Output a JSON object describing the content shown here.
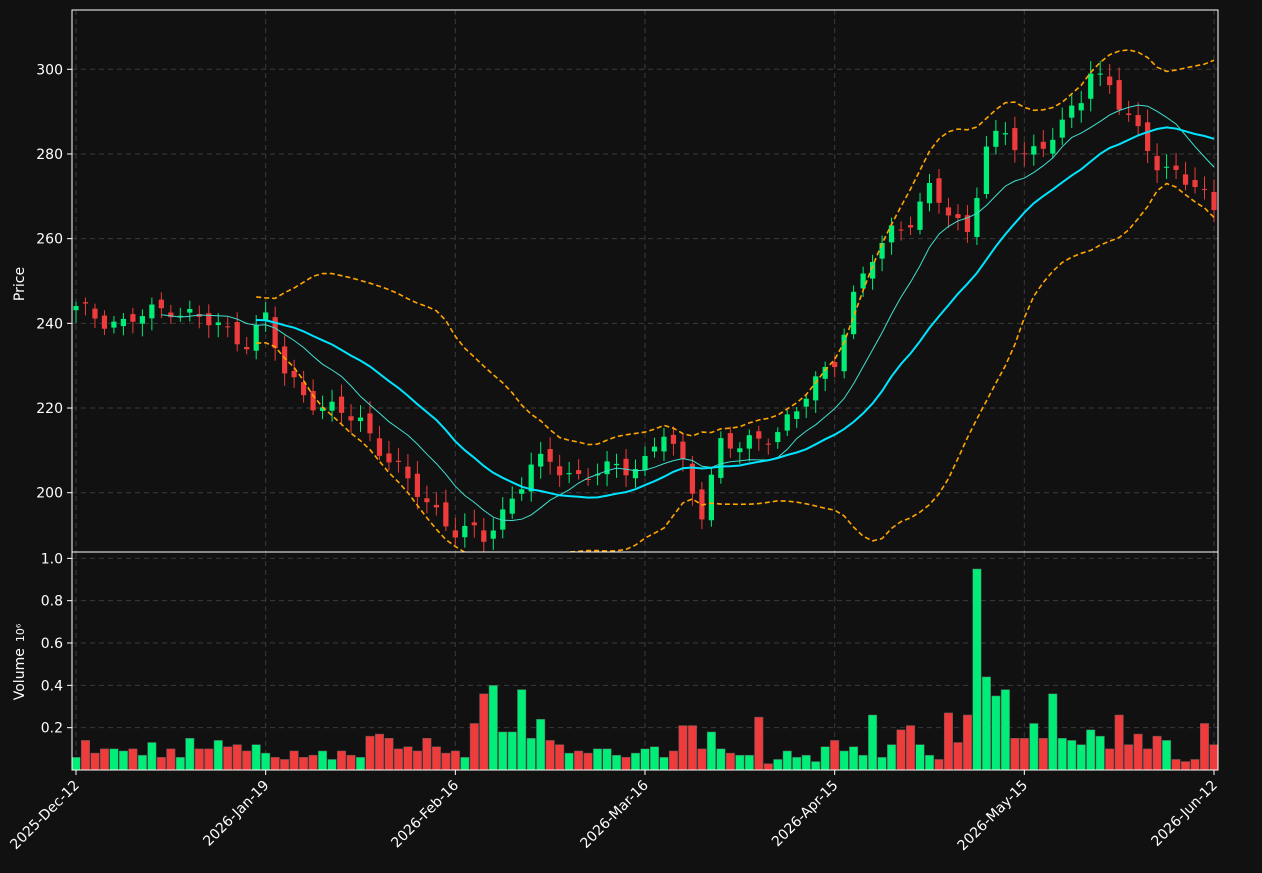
{
  "chart_data": {
    "type": "candlestick",
    "ylabel_price": "Price",
    "ylabel_volume": "Volume",
    "volume_exponent": "10⁶",
    "ylim_price": [
      186,
      314
    ],
    "ylim_volume": [
      0,
      1.03
    ],
    "price_ticks": [
      "200",
      "220",
      "240",
      "260",
      "280",
      "300"
    ],
    "volume_ticks": [
      "0.2",
      "0.4",
      "0.6",
      "0.8",
      "1.0"
    ],
    "x_ticks": [
      {
        "index": 0,
        "label": "2025-Dec-12"
      },
      {
        "index": 20,
        "label": "2026-Jan-19"
      },
      {
        "index": 40,
        "label": "2026-Feb-16"
      },
      {
        "index": 60,
        "label": "2026-Mar-16"
      },
      {
        "index": 80,
        "label": "2026-Apr-15"
      },
      {
        "index": 100,
        "label": "2026-May-15"
      },
      {
        "index": 120,
        "label": "2026-Jun-12"
      }
    ],
    "colors": {
      "up": "#00ee77",
      "down": "#ee3b3b",
      "bollinger": "#ffa500",
      "ma_fast": "#40e0d0",
      "ma_slow": "#00e5ff",
      "grid": "#3a3a3a",
      "background": "#111111",
      "axis": "#ffffff"
    },
    "price_key_points": [
      [
        0,
        243
      ],
      [
        5,
        240
      ],
      [
        10,
        244
      ],
      [
        14,
        240
      ],
      [
        18,
        236
      ],
      [
        20,
        241
      ],
      [
        22,
        228
      ],
      [
        26,
        220
      ],
      [
        30,
        217
      ],
      [
        32,
        211
      ],
      [
        35,
        202
      ],
      [
        38,
        196
      ],
      [
        40,
        191
      ],
      [
        42,
        190
      ],
      [
        43,
        189
      ],
      [
        46,
        199
      ],
      [
        48,
        206
      ],
      [
        50,
        207
      ],
      [
        53,
        204
      ],
      [
        56,
        205
      ],
      [
        58,
        206
      ],
      [
        60,
        208
      ],
      [
        62,
        214
      ],
      [
        64,
        206
      ],
      [
        65,
        201
      ],
      [
        66,
        196
      ],
      [
        68,
        212
      ],
      [
        70,
        210
      ],
      [
        72,
        213
      ],
      [
        74,
        215
      ],
      [
        76,
        219
      ],
      [
        78,
        226
      ],
      [
        80,
        232
      ],
      [
        82,
        246
      ],
      [
        84,
        255
      ],
      [
        86,
        262
      ],
      [
        88,
        265
      ],
      [
        90,
        271
      ],
      [
        92,
        266
      ],
      [
        94,
        262
      ],
      [
        96,
        282
      ],
      [
        98,
        284
      ],
      [
        100,
        280
      ],
      [
        102,
        283
      ],
      [
        104,
        286
      ],
      [
        106,
        293
      ],
      [
        107,
        300
      ],
      [
        109,
        297
      ],
      [
        110,
        292
      ],
      [
        112,
        284
      ],
      [
        114,
        278
      ],
      [
        116,
        276
      ],
      [
        118,
        272
      ],
      [
        120,
        266
      ],
      [
        121,
        270
      ]
    ],
    "volume_series": [
      0.06,
      0.14,
      0.08,
      0.1,
      0.1,
      0.09,
      0.1,
      0.07,
      0.13,
      0.06,
      0.1,
      0.06,
      0.15,
      0.1,
      0.1,
      0.14,
      0.11,
      0.12,
      0.09,
      0.12,
      0.08,
      0.06,
      0.05,
      0.09,
      0.06,
      0.07,
      0.09,
      0.05,
      0.09,
      0.07,
      0.06,
      0.16,
      0.17,
      0.15,
      0.1,
      0.11,
      0.09,
      0.15,
      0.11,
      0.08,
      0.09,
      0.06,
      0.22,
      0.36,
      0.4,
      0.18,
      0.18,
      0.38,
      0.15,
      0.24,
      0.14,
      0.12,
      0.08,
      0.09,
      0.08,
      0.1,
      0.1,
      0.07,
      0.06,
      0.08,
      0.1,
      0.11,
      0.06,
      0.09,
      0.21,
      0.21,
      0.1,
      0.18,
      0.1,
      0.08,
      0.07,
      0.07,
      0.25,
      0.03,
      0.05,
      0.09,
      0.06,
      0.07,
      0.04,
      0.11,
      0.14,
      0.09,
      0.11,
      0.07,
      0.26,
      0.06,
      0.12,
      0.19,
      0.21,
      0.12,
      0.07,
      0.05,
      0.27,
      0.13,
      0.26,
      0.95,
      0.44,
      0.35,
      0.38,
      0.15,
      0.15,
      0.22,
      0.15,
      0.36,
      0.15,
      0.14,
      0.12,
      0.19,
      0.16,
      0.1,
      0.26,
      0.12,
      0.17,
      0.1,
      0.16,
      0.14,
      0.05,
      0.04,
      0.05,
      0.22,
      0.12
    ]
  }
}
